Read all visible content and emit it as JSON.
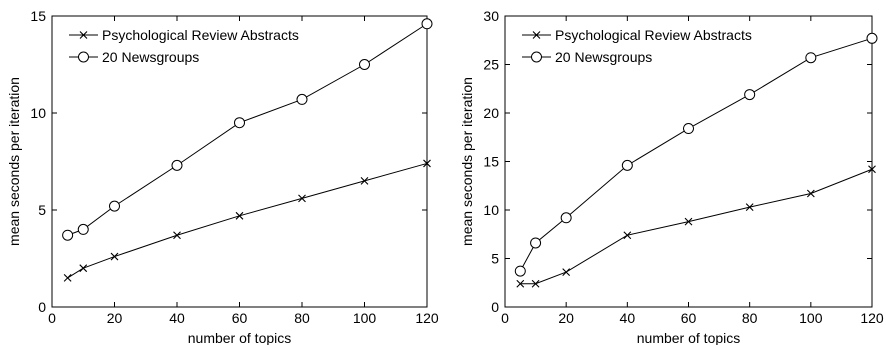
{
  "chart_data": [
    {
      "type": "line",
      "title": "",
      "xlabel": "number of topics",
      "ylabel": "mean seconds per iteration",
      "xlim": [
        0,
        120
      ],
      "ylim": [
        0,
        15
      ],
      "xticks": [
        "0",
        "20",
        "40",
        "60",
        "80",
        "100",
        "120"
      ],
      "yticks": [
        "0",
        "5",
        "10",
        "15"
      ],
      "grid": false,
      "legend_position": "top-left",
      "x": [
        5,
        10,
        20,
        40,
        60,
        80,
        100,
        120
      ],
      "series": [
        {
          "name": "Psychological Review Abstracts",
          "marker": "x",
          "values": [
            1.5,
            2.0,
            2.6,
            3.7,
            4.7,
            5.6,
            6.5,
            7.4
          ]
        },
        {
          "name": "20 Newsgroups",
          "marker": "circle",
          "values": [
            3.7,
            4.0,
            5.2,
            7.3,
            9.5,
            10.7,
            12.5,
            14.6
          ]
        }
      ]
    },
    {
      "type": "line",
      "title": "",
      "xlabel": "number of topics",
      "ylabel": "mean seconds per iteration",
      "xlim": [
        0,
        120
      ],
      "ylim": [
        0,
        30
      ],
      "xticks": [
        "0",
        "20",
        "40",
        "60",
        "80",
        "100",
        "120"
      ],
      "yticks": [
        "0",
        "5",
        "10",
        "15",
        "20",
        "25",
        "30"
      ],
      "grid": false,
      "legend_position": "top-left",
      "x": [
        5,
        10,
        20,
        40,
        60,
        80,
        100,
        120
      ],
      "series": [
        {
          "name": "Psychological Review Abstracts",
          "marker": "x",
          "values": [
            2.4,
            2.4,
            3.6,
            7.4,
            8.8,
            10.3,
            11.7,
            14.2
          ]
        },
        {
          "name": "20 Newsgroups",
          "marker": "circle",
          "values": [
            3.7,
            6.6,
            9.2,
            14.6,
            18.4,
            21.9,
            25.7,
            27.7
          ]
        }
      ]
    }
  ]
}
